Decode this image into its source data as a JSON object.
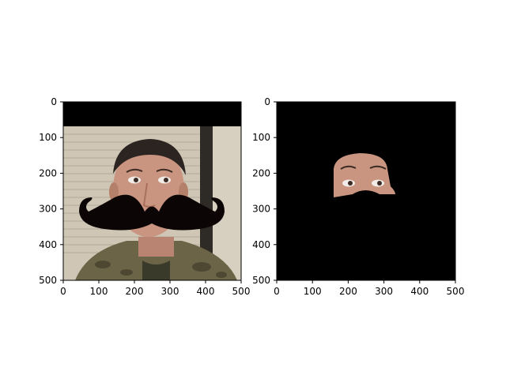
{
  "chart_data": [
    {
      "type": "image",
      "xlim": [
        0,
        500
      ],
      "ylim": [
        500,
        0
      ],
      "xticks": [
        0,
        100,
        200,
        300,
        400,
        500
      ],
      "yticks": [
        0,
        100,
        200,
        300,
        400,
        500
      ],
      "xtick_labels": [
        "0",
        "100",
        "200",
        "300",
        "400",
        "500"
      ],
      "ytick_labels": [
        "0",
        "100",
        "200",
        "300",
        "400",
        "500"
      ]
    },
    {
      "type": "image",
      "xlim": [
        0,
        500
      ],
      "ylim": [
        500,
        0
      ],
      "xticks": [
        0,
        100,
        200,
        300,
        400,
        500
      ],
      "yticks": [
        0,
        100,
        200,
        300,
        400,
        500
      ],
      "xtick_labels": [
        "0",
        "100",
        "200",
        "300",
        "400",
        "500"
      ],
      "ytick_labels": [
        "0",
        "100",
        "200",
        "300",
        "400",
        "500"
      ]
    }
  ],
  "colors": {
    "background": "#000000",
    "blinds": "#cfc6b6",
    "wall": "#d7cfc0",
    "door_frame": "#2e2a26",
    "skin": "#c99580",
    "skin_shade": "#a8705c",
    "hair": "#2b2420",
    "camo": "#6c6446",
    "mustache": "#0b0505"
  }
}
